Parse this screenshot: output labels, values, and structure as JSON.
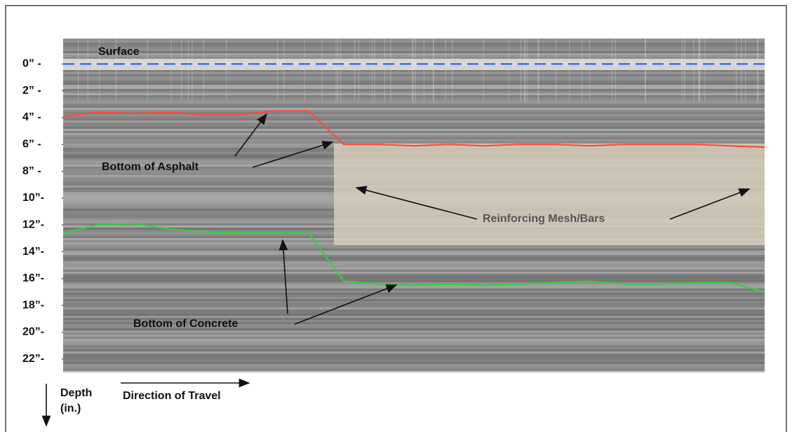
{
  "chart_data": {
    "type": "line",
    "y_inverted": true,
    "ylim": [
      -1.9,
      22.9
    ],
    "yticks": [
      {
        "value": 0,
        "label": "0” -"
      },
      {
        "value": 2,
        "label": "2” -"
      },
      {
        "value": 4,
        "label": "4” -"
      },
      {
        "value": 6,
        "label": "6” -"
      },
      {
        "value": 8,
        "label": "8” -"
      },
      {
        "value": 10,
        "label": "10”-"
      },
      {
        "value": 12,
        "label": "12”-"
      },
      {
        "value": 14,
        "label": "14”-"
      },
      {
        "value": 16,
        "label": "16”-"
      },
      {
        "value": 18,
        "label": "18”-"
      },
      {
        "value": 20,
        "label": "20”-"
      },
      {
        "value": 22,
        "label": "22”-"
      }
    ],
    "y_label": [
      "Depth",
      "(in.)"
    ],
    "x_label": "Direction of Travel",
    "reference_line": {
      "label": "Surface",
      "value": 0,
      "color": "#3b6fe0"
    },
    "categories": [
      null,
      null,
      null,
      null,
      null,
      null,
      null,
      null,
      null,
      null,
      null,
      null,
      null,
      null,
      null,
      null,
      null,
      null,
      null,
      null,
      null
    ],
    "series": [
      {
        "color": "#ff4a3d",
        "values": [
          3.9,
          3.6,
          3.7,
          3.6,
          3.8,
          3.8,
          3.5,
          3.5,
          6.0,
          6.0,
          6.1,
          6.0,
          6.1,
          6.0,
          6.0,
          6.1,
          6.0,
          6.0,
          6.0,
          6.1,
          6.2
        ]
      },
      {
        "color": "#33d13a",
        "values": [
          12.6,
          12.0,
          11.9,
          12.3,
          12.5,
          12.6,
          12.6,
          12.6,
          16.2,
          16.4,
          16.5,
          16.4,
          16.5,
          16.4,
          16.3,
          16.2,
          16.4,
          16.4,
          16.3,
          16.3,
          17.0
        ]
      }
    ],
    "annotations": [
      "Bottom of Asphalt",
      "Reinforcing Mesh/Bars",
      "Bottom of Concrete"
    ]
  }
}
